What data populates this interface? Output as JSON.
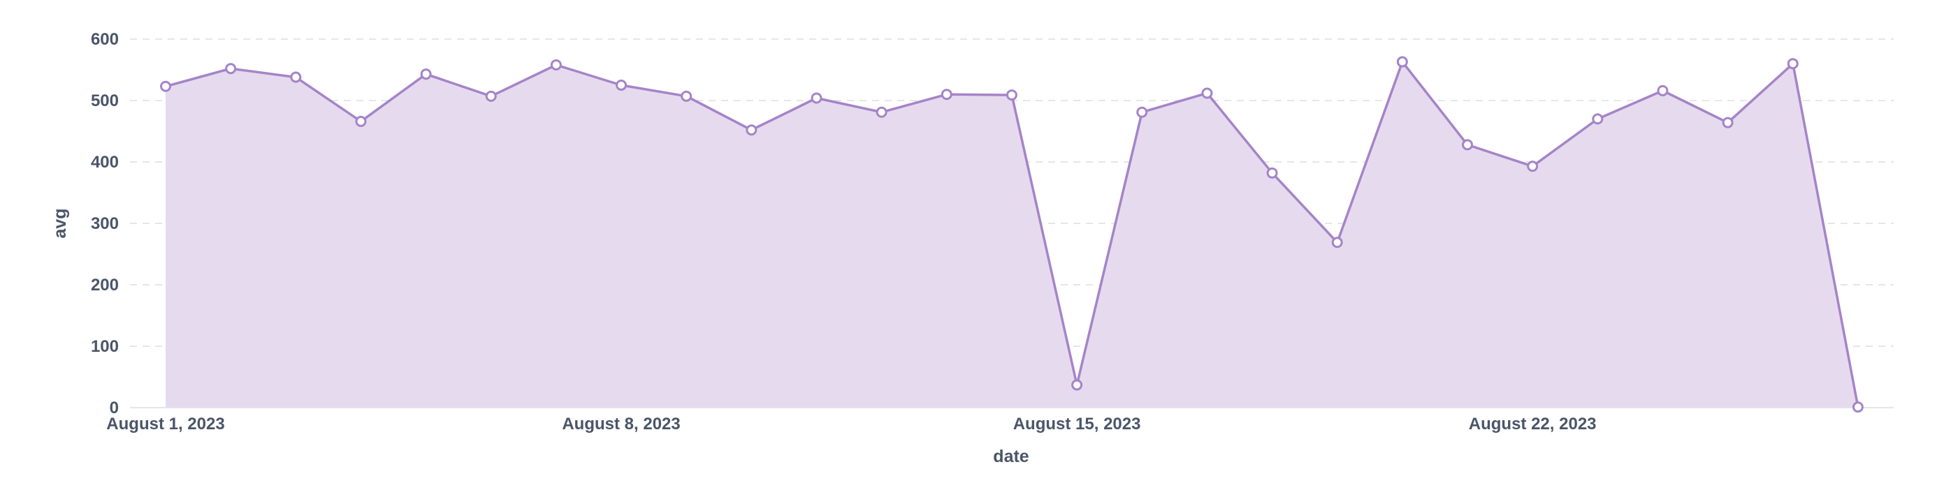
{
  "chart_data": {
    "type": "area",
    "title": "",
    "xlabel": "date",
    "ylabel": "avg",
    "ylim": [
      0,
      600
    ],
    "yticks": [
      0,
      100,
      200,
      300,
      400,
      500,
      600
    ],
    "xticks": [
      {
        "date": "2023-08-01",
        "label": "August 1, 2023"
      },
      {
        "date": "2023-08-08",
        "label": "August 8, 2023"
      },
      {
        "date": "2023-08-15",
        "label": "August 15, 2023"
      },
      {
        "date": "2023-08-22",
        "label": "August 22, 2023"
      }
    ],
    "grid": true,
    "legend": "none",
    "colors": {
      "line": "#a584c8",
      "fill": "#e6dbee",
      "grid": "#e6e6ea",
      "point_fill": "#ffffff",
      "text": "#4a5568"
    },
    "x": [
      "2023-08-01",
      "2023-08-02",
      "2023-08-03",
      "2023-08-04",
      "2023-08-05",
      "2023-08-06",
      "2023-08-07",
      "2023-08-08",
      "2023-08-09",
      "2023-08-10",
      "2023-08-11",
      "2023-08-12",
      "2023-08-13",
      "2023-08-14",
      "2023-08-15",
      "2023-08-16",
      "2023-08-17",
      "2023-08-18",
      "2023-08-19",
      "2023-08-20",
      "2023-08-21",
      "2023-08-22",
      "2023-08-23",
      "2023-08-24",
      "2023-08-25",
      "2023-08-26",
      "2023-08-27"
    ],
    "series": [
      {
        "values": [
          523,
          552,
          538,
          466,
          543,
          507,
          558,
          525,
          507,
          452,
          504,
          481,
          510,
          509,
          37,
          481,
          512,
          382,
          269,
          563,
          428,
          393,
          470,
          516,
          464,
          560,
          1
        ]
      }
    ]
  }
}
